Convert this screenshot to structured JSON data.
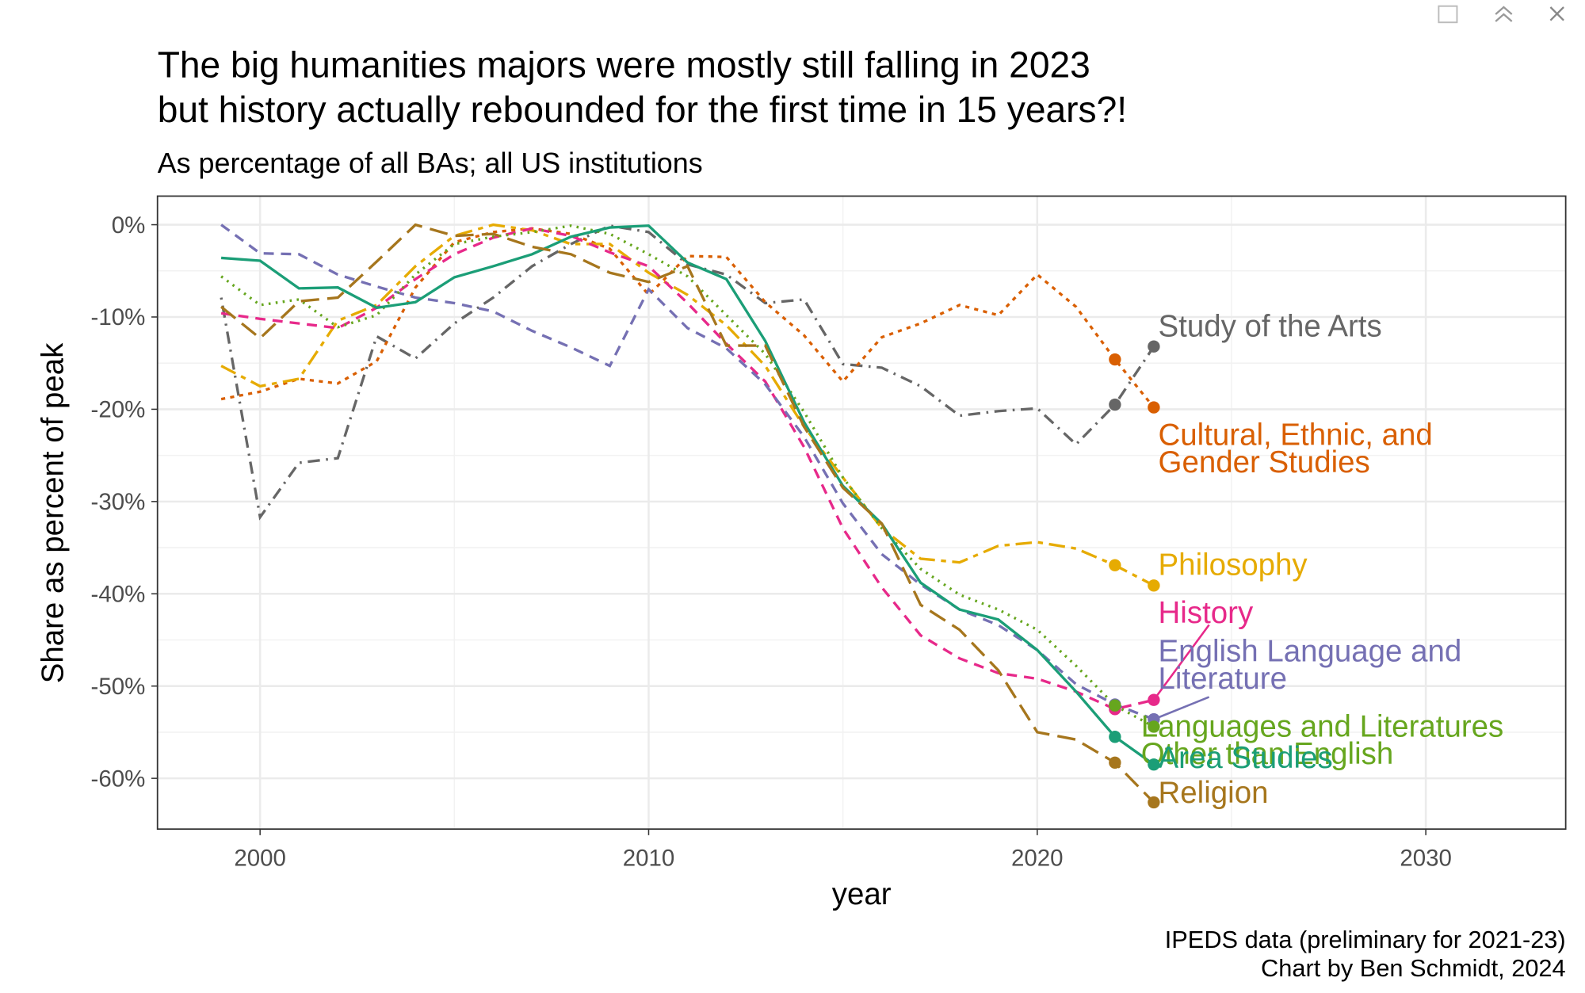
{
  "chart_data": {
    "type": "line",
    "title": [
      "The big humanities majors were mostly still falling in 2023",
      "but history actually rebounded for the first time in 15 years?!"
    ],
    "subtitle": "As percentage of all BAs; all US institutions",
    "x_label": "year",
    "y_label": "Share as percent of peak",
    "caption": [
      "IPEDS data (preliminary for 2021-23)",
      "Chart by Ben Schmidt, 2024"
    ],
    "grid": true,
    "xlim": [
      1997.36,
      2033.6
    ],
    "ylim": [
      -65.5,
      3.1
    ],
    "xticks": [
      2000,
      2010,
      2020,
      2030
    ],
    "yticks": [
      {
        "value": 0,
        "label": "0%"
      },
      {
        "value": -10,
        "label": "-10%"
      },
      {
        "value": -20,
        "label": "-20%"
      },
      {
        "value": -30,
        "label": "-30%"
      },
      {
        "value": -40,
        "label": "-40%"
      },
      {
        "value": -50,
        "label": "-50%"
      },
      {
        "value": -60,
        "label": "-60%"
      }
    ],
    "x": [
      1999,
      2000,
      2001,
      2002,
      2003,
      2004,
      2005,
      2006,
      2007,
      2008,
      2009,
      2010,
      2011,
      2012,
      2013,
      2014,
      2015,
      2016,
      2017,
      2018,
      2019,
      2020,
      2021,
      2022,
      2023
    ],
    "series": [
      {
        "name": "Study of the Arts",
        "color": "#666666",
        "linetype": "dotdash",
        "values": [
          -7.9,
          -31.7,
          -25.8,
          -25.3,
          -12.1,
          -14.5,
          -10.7,
          -7.9,
          -4.5,
          -2.1,
          -0.1,
          -0.8,
          -4.3,
          -5.4,
          -8.5,
          -8.1,
          -15.1,
          -15.5,
          -17.5,
          -20.7,
          -20.2,
          -19.9,
          -23.8,
          -19.5,
          -13.2
        ]
      },
      {
        "name": "Cultural, Ethnic, and Gender Studies",
        "color": "#d95f02",
        "linetype": "dotted-dash",
        "values": [
          -18.9,
          -18.1,
          -16.7,
          -17.2,
          -14.8,
          -6.8,
          -1.9,
          -0.8,
          -0.4,
          -1.0,
          -2.6,
          -7.6,
          -3.4,
          -3.5,
          -8.4,
          -12.0,
          -17.0,
          -12.2,
          -10.7,
          -8.7,
          -9.8,
          -5.4,
          -8.9,
          -14.6,
          -19.8
        ]
      },
      {
        "name": "Philosophy",
        "color": "#e6ab02",
        "linetype": "twodash",
        "values": [
          -15.3,
          -17.5,
          -16.7,
          -10.4,
          -8.7,
          -4.5,
          -1.2,
          0,
          -0.6,
          -2.1,
          -2.1,
          -5.2,
          -7.6,
          -10.9,
          -15.3,
          -21.9,
          -27.4,
          -32.9,
          -36.2,
          -36.6,
          -34.8,
          -34.4,
          -35.1,
          -36.9,
          -39.1
        ]
      },
      {
        "name": "History",
        "color": "#e7298a",
        "linetype": "dashed",
        "values": [
          -9.6,
          -10.2,
          -10.7,
          -11.2,
          -9.0,
          -5.9,
          -3.2,
          -1.4,
          -0.4,
          -1.2,
          -3.0,
          -4.5,
          -8.5,
          -12.9,
          -17.0,
          -24.1,
          -32.9,
          -39.3,
          -44.5,
          -47.0,
          -48.6,
          -49.2,
          -50.6,
          -52.5,
          -51.5
        ]
      },
      {
        "name": "English Language and Literature",
        "color": "#7570b3",
        "linetype": "dashed",
        "values": [
          0,
          -3.1,
          -3.2,
          -5.4,
          -6.7,
          -7.9,
          -8.5,
          -9.4,
          -11.5,
          -13.3,
          -15.3,
          -7.0,
          -11.2,
          -13.4,
          -17.3,
          -23.0,
          -30.2,
          -35.7,
          -39.0,
          -41.7,
          -43.4,
          -46.1,
          -49.8,
          -52.0,
          -53.6
        ]
      },
      {
        "name": "Languages and Literatures Other than English",
        "color": "#66a61e",
        "linetype": "dotted",
        "values": [
          -5.6,
          -8.7,
          -8.1,
          -11.1,
          -9.8,
          -5.4,
          -2.1,
          -1.3,
          -0.8,
          -0.1,
          -1.0,
          -3.2,
          -5.6,
          -9.8,
          -14.0,
          -20.3,
          -27.4,
          -32.9,
          -37.3,
          -40.1,
          -41.7,
          -43.9,
          -47.8,
          -52.1,
          -54.4
        ]
      },
      {
        "name": "Area Studies",
        "color": "#1b9e77",
        "linetype": "solid",
        "values": [
          -3.6,
          -3.9,
          -6.9,
          -6.8,
          -9.0,
          -8.4,
          -5.7,
          -4.5,
          -3.2,
          -1.3,
          -0.3,
          -0.1,
          -4.1,
          -5.9,
          -12.6,
          -21.4,
          -28.3,
          -32.4,
          -38.8,
          -41.7,
          -42.8,
          -46.1,
          -50.6,
          -55.5,
          -58.5
        ]
      },
      {
        "name": "Religion",
        "color": "#a6761d",
        "linetype": "longdash",
        "values": [
          -8.9,
          -12.3,
          -8.3,
          -7.9,
          -4.0,
          0,
          -1.2,
          -1.0,
          -2.4,
          -3.2,
          -5.2,
          -6.2,
          -4.5,
          -13.1,
          -13.1,
          -21.9,
          -28.5,
          -32.4,
          -41.2,
          -43.9,
          -48.3,
          -55.0,
          -55.8,
          -58.3,
          -62.6
        ]
      }
    ]
  }
}
